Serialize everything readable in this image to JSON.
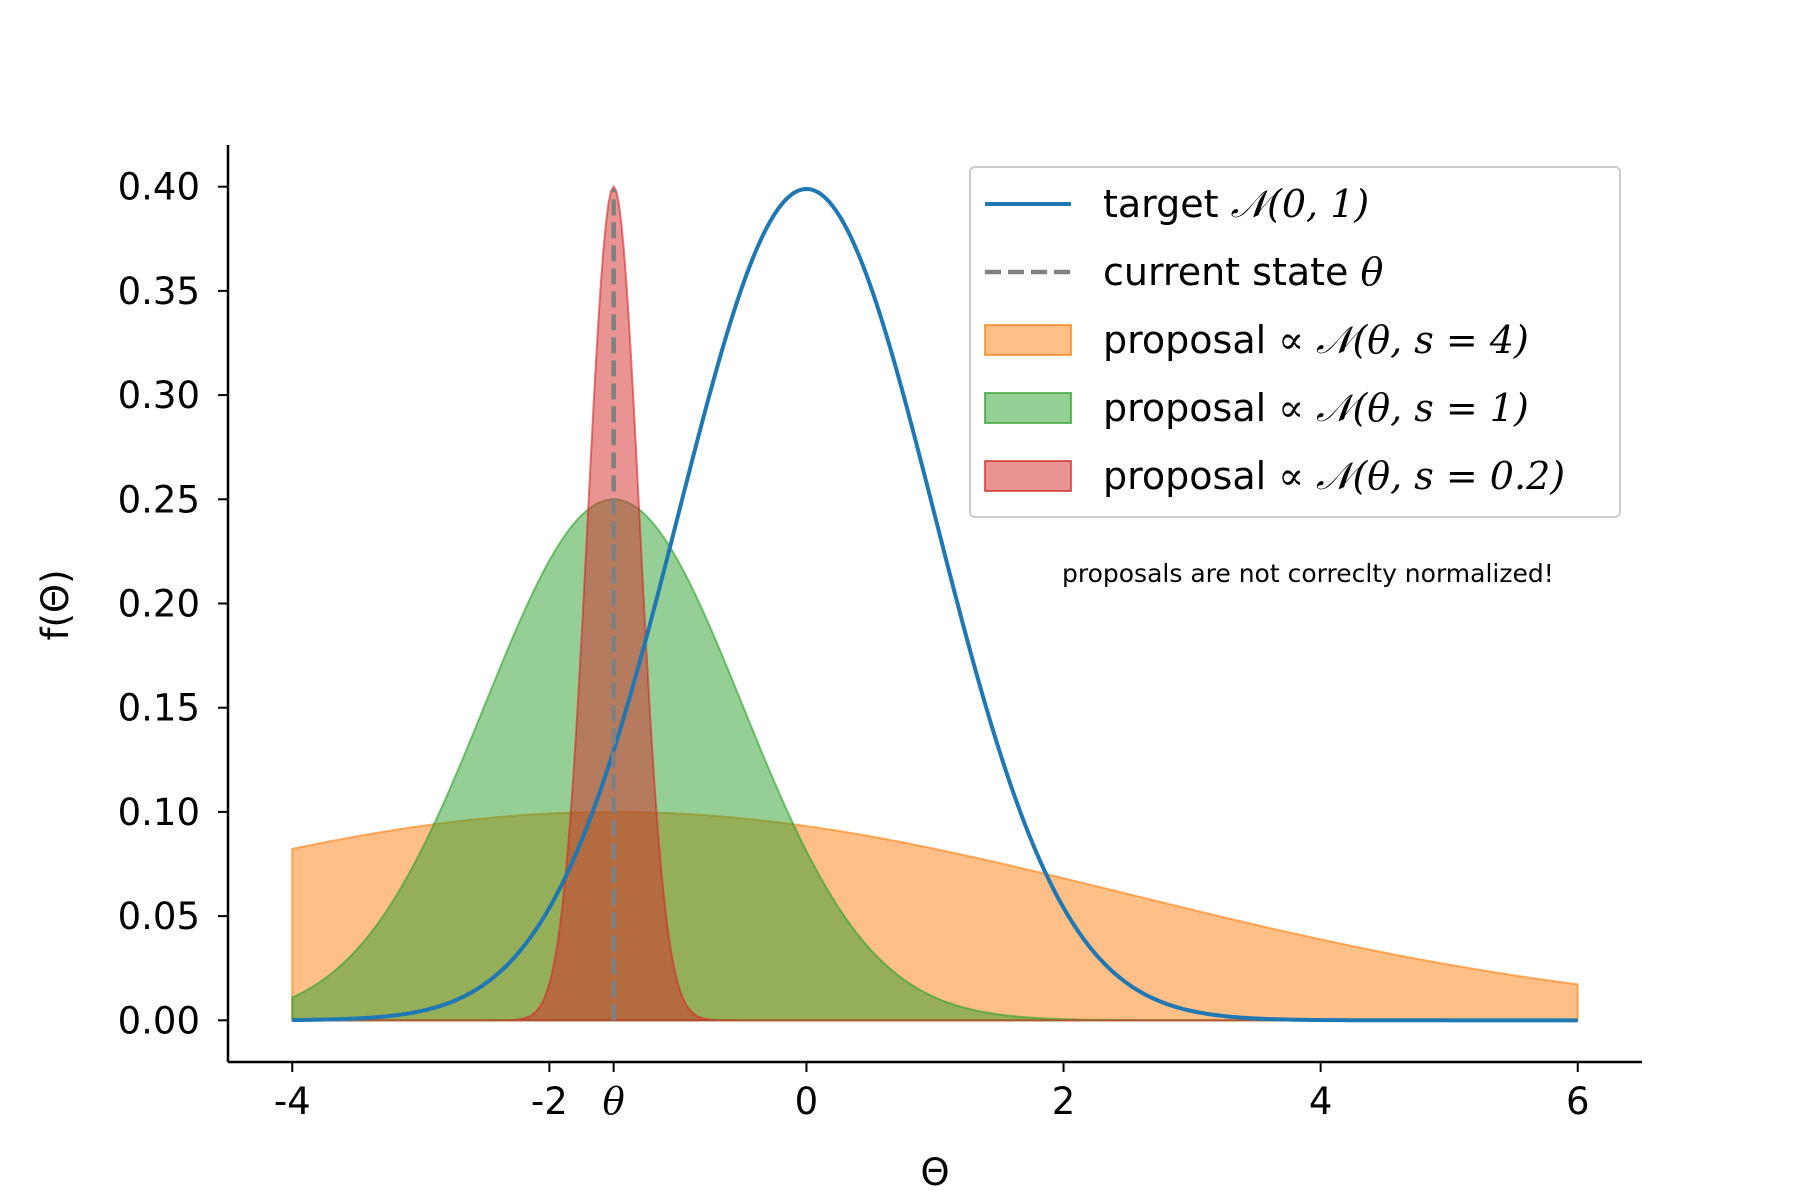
{
  "chart_data": {
    "type": "area",
    "title": "",
    "xlabel": "Θ",
    "ylabel": "f(Θ)",
    "xlim": [
      -4.5,
      6.5
    ],
    "ylim": [
      -0.02,
      0.42
    ],
    "x_range": [
      -4,
      6
    ],
    "x_ticks": [
      {
        "value": -4,
        "label": "-4"
      },
      {
        "value": -2,
        "label": "-2"
      },
      {
        "value": -1.5,
        "label": "θ"
      },
      {
        "value": 0,
        "label": "0"
      },
      {
        "value": 2,
        "label": "2"
      },
      {
        "value": 4,
        "label": "4"
      },
      {
        "value": 6,
        "label": "6"
      }
    ],
    "y_ticks": [
      {
        "value": 0.0,
        "label": "0.00"
      },
      {
        "value": 0.05,
        "label": "0.05"
      },
      {
        "value": 0.1,
        "label": "0.10"
      },
      {
        "value": 0.15,
        "label": "0.15"
      },
      {
        "value": 0.2,
        "label": "0.20"
      },
      {
        "value": 0.25,
        "label": "0.25"
      },
      {
        "value": 0.3,
        "label": "0.30"
      },
      {
        "value": 0.35,
        "label": "0.35"
      },
      {
        "value": 0.4,
        "label": "0.40"
      }
    ],
    "current_state": 1.5,
    "current_state_sign": -1,
    "series": [
      {
        "kind": "filled",
        "mean": -1.5,
        "sd": 4,
        "peak": 0.1,
        "color": "#ff7f0e",
        "alpha": 0.5
      },
      {
        "kind": "filled",
        "mean": -1.5,
        "sd": 1,
        "peak": 0.25,
        "color": "#2ca02c",
        "alpha": 0.5
      },
      {
        "kind": "filled",
        "mean": -1.5,
        "sd": 0.2,
        "peak": 0.4,
        "color": "#d62728",
        "alpha": 0.5
      },
      {
        "kind": "line",
        "mean": 0,
        "sd": 1,
        "peak": 0.3989,
        "color": "#1f77b4"
      },
      {
        "kind": "dashed",
        "x": -1.5,
        "y_top": 0.3989,
        "color": "#808080"
      }
    ],
    "legend": {
      "position": "top-right",
      "entries": [
        {
          "marker": "line",
          "color": "#1f77b4",
          "text": "target ",
          "math": "𝒩(0, 1)"
        },
        {
          "marker": "dashed",
          "color": "#808080",
          "text": "current state ",
          "math": "θ"
        },
        {
          "marker": "patch",
          "color": "#ff7f0e",
          "text": "proposal ",
          "math": "∝ 𝒩(θ, s = 4)"
        },
        {
          "marker": "patch",
          "color": "#2ca02c",
          "text": "proposal ",
          "math": "∝ 𝒩(θ, s = 1)"
        },
        {
          "marker": "patch",
          "color": "#d62728",
          "text": "proposal ",
          "math": "∝ 𝒩(θ, s = 0.2)"
        }
      ]
    },
    "annotation": "proposals are not correclty normalized!"
  }
}
